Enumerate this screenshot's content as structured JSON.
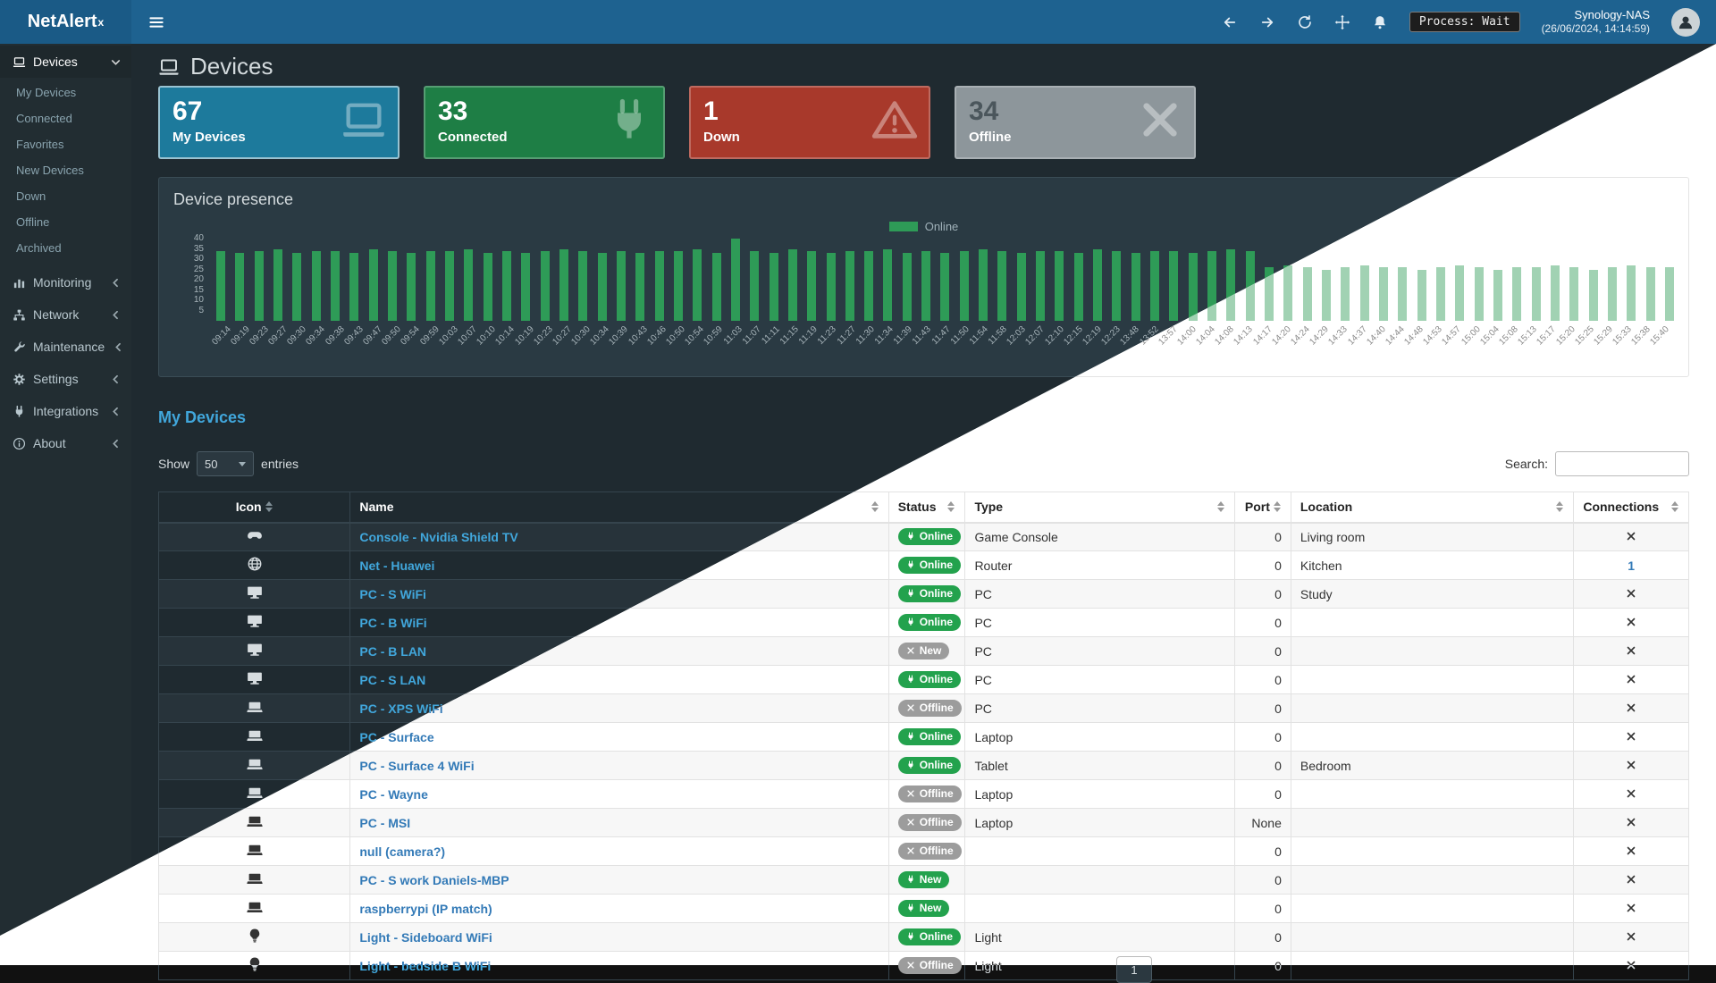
{
  "app": {
    "brand": "NetAlert",
    "brand_sup": "x",
    "process_label": "Process: Wait",
    "host": "Synology-NAS",
    "host_time": "(26/06/2024, 14:14:59)"
  },
  "navbar": {
    "icons": [
      "hamburger-icon",
      "arrow-left-icon",
      "arrow-right-icon",
      "refresh-icon",
      "move-icon",
      "bell-icon",
      "avatar-person-icon"
    ]
  },
  "sidebar": {
    "items": [
      {
        "label": "Devices",
        "icon": "laptop-icon",
        "state": "expanded",
        "active": true,
        "children": [
          "My Devices",
          "Connected",
          "Favorites",
          "New Devices",
          "Down",
          "Offline",
          "Archived"
        ]
      },
      {
        "label": "Monitoring",
        "icon": "chart-icon",
        "state": "collapsed"
      },
      {
        "label": "Network",
        "icon": "network-icon",
        "state": "collapsed"
      },
      {
        "label": "Maintenance",
        "icon": "wrench-icon",
        "state": "collapsed"
      },
      {
        "label": "Settings",
        "icon": "gear-icon",
        "state": "collapsed"
      },
      {
        "label": "Integrations",
        "icon": "plug-icon",
        "state": "collapsed"
      },
      {
        "label": "About",
        "icon": "info-icon",
        "state": "collapsed"
      }
    ]
  },
  "page": {
    "title": "Devices",
    "title_icon": "laptop-icon"
  },
  "cards": [
    {
      "value": "67",
      "label": "My Devices",
      "color": "#1d7a9c",
      "icon": "laptop-icon",
      "active": true
    },
    {
      "value": "33",
      "label": "Connected",
      "color": "#1e7e45",
      "icon": "plug-icon"
    },
    {
      "value": "1",
      "label": "Down",
      "color": "#a8392b",
      "icon": "warning-icon"
    },
    {
      "value": "34",
      "label": "Offline",
      "color": "#8d969b",
      "icon": "x-icon",
      "value_color": "#4b565c"
    }
  ],
  "presence": {
    "title": "Device presence",
    "legend": "Online",
    "chart_data": {
      "type": "bar",
      "title": "Device presence",
      "legend": [
        "Online"
      ],
      "legend_position": "top-center",
      "series_color": "#2e9b57",
      "ylim": [
        0,
        40
      ],
      "yticks": [
        5,
        10,
        15,
        20,
        25,
        30,
        35,
        40
      ],
      "grid": false,
      "x": [
        "09:14",
        "09:19",
        "09:23",
        "09:27",
        "09:30",
        "09:34",
        "09:38",
        "09:43",
        "09:47",
        "09:50",
        "09:54",
        "09:59",
        "10:03",
        "10:07",
        "10:10",
        "10:14",
        "10:19",
        "10:23",
        "10:27",
        "10:30",
        "10:34",
        "10:39",
        "10:43",
        "10:46",
        "10:50",
        "10:54",
        "10:59",
        "11:03",
        "11:07",
        "11:11",
        "11:15",
        "11:19",
        "11:23",
        "11:27",
        "11:30",
        "11:34",
        "11:39",
        "11:43",
        "11:47",
        "11:50",
        "11:54",
        "11:58",
        "12:03",
        "12:07",
        "12:10",
        "12:15",
        "12:19",
        "12:23",
        "13:48",
        "13:52",
        "13:57",
        "14:00",
        "14:04",
        "14:08",
        "14:13",
        "14:17",
        "14:20",
        "14:24",
        "14:29",
        "14:33",
        "14:37",
        "14:40",
        "14:44",
        "14:48",
        "14:53",
        "14:57",
        "15:00",
        "15:04",
        "15:08",
        "15:13",
        "15:17",
        "15:20",
        "15:25",
        "15:29",
        "15:33",
        "15:38",
        "15:40"
      ],
      "series": [
        {
          "name": "Online",
          "values": [
            34,
            33,
            34,
            35,
            33,
            34,
            34,
            33,
            35,
            34,
            33,
            34,
            34,
            35,
            33,
            34,
            33,
            34,
            35,
            34,
            33,
            34,
            33,
            34,
            34,
            35,
            33,
            40,
            34,
            33,
            35,
            34,
            33,
            34,
            34,
            35,
            33,
            34,
            33,
            34,
            35,
            34,
            33,
            34,
            34,
            33,
            35,
            34,
            33,
            34,
            34,
            33,
            34,
            35,
            34,
            26,
            27,
            26,
            25,
            26,
            27,
            26,
            26,
            25,
            26,
            27,
            26,
            25,
            26,
            26,
            27,
            26,
            25,
            26,
            27,
            26,
            26
          ]
        }
      ]
    }
  },
  "devices_table": {
    "title": "My Devices",
    "show_label": "Show",
    "page_length": "50",
    "entries_label": "entries",
    "search_label": "Search:",
    "search_value": "",
    "pagination_current": "1",
    "columns": [
      "Icon",
      "Name",
      "Status",
      "Type",
      "Port",
      "Location",
      "Connections"
    ],
    "column_keys": [
      "icon",
      "name",
      "status",
      "type",
      "port",
      "location",
      "conn"
    ],
    "rows": [
      {
        "icon": "gamepad-icon",
        "name": "Console - Nvidia Shield TV",
        "status": {
          "label": "Online",
          "variant": "online",
          "icon": "plug-icon"
        },
        "type": "Game Console",
        "port": "0",
        "location": "Living room",
        "connections": "x"
      },
      {
        "icon": "globe-icon",
        "name": "Net - Huawei",
        "status": {
          "label": "Online",
          "variant": "online",
          "icon": "plug-icon"
        },
        "type": "Router",
        "port": "0",
        "location": "Kitchen",
        "connections": "1"
      },
      {
        "icon": "desktop-icon",
        "name": "PC - S WiFi",
        "status": {
          "label": "Online",
          "variant": "online",
          "icon": "plug-icon"
        },
        "type": "PC",
        "port": "0",
        "location": "Study",
        "connections": "x"
      },
      {
        "icon": "desktop-icon",
        "name": "PC - B WiFi",
        "status": {
          "label": "Online",
          "variant": "online",
          "icon": "plug-icon"
        },
        "type": "PC",
        "port": "0",
        "location": "",
        "connections": "x"
      },
      {
        "icon": "desktop-icon",
        "name": "PC - B LAN",
        "status": {
          "label": "New",
          "variant": "muted",
          "icon": "x-icon"
        },
        "type": "PC",
        "port": "0",
        "location": "",
        "connections": "x"
      },
      {
        "icon": "desktop-icon",
        "name": "PC - S LAN",
        "status": {
          "label": "Online",
          "variant": "online",
          "icon": "plug-icon"
        },
        "type": "PC",
        "port": "0",
        "location": "",
        "connections": "x"
      },
      {
        "icon": "laptop-solid-icon",
        "name": "PC - XPS WiFi",
        "status": {
          "label": "Offline",
          "variant": "muted",
          "icon": "x-icon"
        },
        "type": "PC",
        "port": "0",
        "location": "",
        "connections": "x"
      },
      {
        "icon": "laptop-solid-icon",
        "name": "PC - Surface",
        "status": {
          "label": "Online",
          "variant": "online",
          "icon": "plug-icon"
        },
        "type": "Laptop",
        "port": "0",
        "location": "",
        "connections": "x"
      },
      {
        "icon": "laptop-solid-icon",
        "name": "PC - Surface 4 WiFi",
        "status": {
          "label": "Online",
          "variant": "online",
          "icon": "plug-icon"
        },
        "type": "Tablet",
        "port": "0",
        "location": "Bedroom",
        "connections": "x"
      },
      {
        "icon": "laptop-solid-icon",
        "name": "PC - Wayne",
        "status": {
          "label": "Offline",
          "variant": "muted",
          "icon": "x-icon"
        },
        "type": "Laptop",
        "port": "0",
        "location": "",
        "connections": "x"
      },
      {
        "icon": "laptop-solid-icon",
        "name": "PC - MSI",
        "status": {
          "label": "Offline",
          "variant": "muted",
          "icon": "x-icon"
        },
        "type": "Laptop",
        "port": "None",
        "location": "",
        "connections": "x"
      },
      {
        "icon": "laptop-solid-icon",
        "name": "null (camera?)",
        "status": {
          "label": "Offline",
          "variant": "muted",
          "icon": "x-icon"
        },
        "type": "",
        "port": "0",
        "location": "",
        "connections": "x"
      },
      {
        "icon": "laptop-solid-icon",
        "name": "PC - S work Daniels-MBP",
        "status": {
          "label": "New",
          "variant": "online",
          "icon": "plug-icon"
        },
        "type": "",
        "port": "0",
        "location": "",
        "connections": "x"
      },
      {
        "icon": "laptop-solid-icon",
        "name": "raspberrypi (IP match)",
        "status": {
          "label": "New",
          "variant": "online",
          "icon": "plug-icon"
        },
        "type": "",
        "port": "0",
        "location": "",
        "connections": "x"
      },
      {
        "icon": "bulb-icon",
        "name": "Light - Sideboard WiFi",
        "status": {
          "label": "Online",
          "variant": "online",
          "icon": "plug-icon"
        },
        "type": "Light",
        "port": "0",
        "location": "",
        "connections": "x"
      },
      {
        "icon": "bulb-icon",
        "name": "Light - bedside B WiFi",
        "status": {
          "label": "Offline",
          "variant": "muted",
          "icon": "x-icon"
        },
        "type": "Light",
        "port": "0",
        "location": "",
        "connections": "x"
      }
    ]
  }
}
